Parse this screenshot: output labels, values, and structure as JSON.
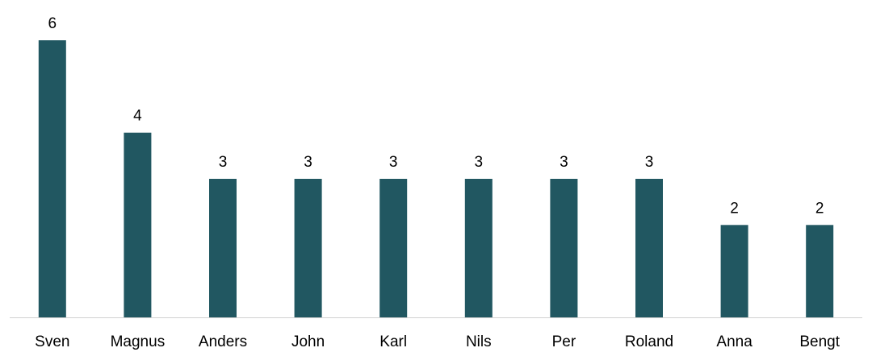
{
  "chart_data": {
    "type": "bar",
    "title": "",
    "xlabel": "",
    "ylabel": "",
    "categories": [
      "Sven",
      "Magnus",
      "Anders",
      "John",
      "Karl",
      "Nils",
      "Per",
      "Roland",
      "Anna",
      "Bengt"
    ],
    "values": [
      6,
      4,
      3,
      3,
      3,
      3,
      3,
      3,
      2,
      2
    ],
    "ylim": [
      0,
      6
    ],
    "grid": false,
    "data_labels": true,
    "legend": "none",
    "colors": {
      "bar": "#215761",
      "axis": "#d0d0d0",
      "text": "#000000"
    }
  }
}
